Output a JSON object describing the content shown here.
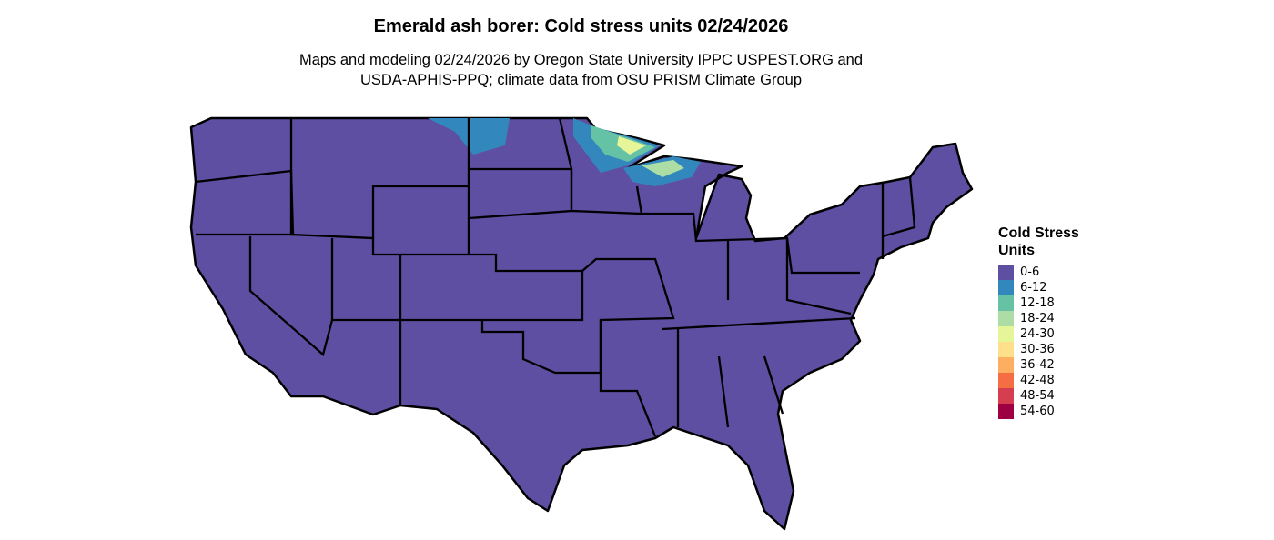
{
  "title": "Emerald ash borer: Cold stress units 02/24/2026",
  "subtitle_lines": [
    "Maps and modeling 02/24/2026 by Oregon State University IPPC USPEST.ORG and",
    "USDA-APHIS-PPQ; climate data from OSU PRISM Climate Group"
  ],
  "legend": {
    "title_lines": [
      "Cold Stress",
      "Units"
    ],
    "items": [
      {
        "label": "0-6",
        "color": "#5E4FA2"
      },
      {
        "label": "6-12",
        "color": "#3288BD"
      },
      {
        "label": "12-18",
        "color": "#66C2A5"
      },
      {
        "label": "18-24",
        "color": "#ABDDA4"
      },
      {
        "label": "24-30",
        "color": "#E6F598"
      },
      {
        "label": "30-36",
        "color": "#FEE08B"
      },
      {
        "label": "36-42",
        "color": "#FDAE61"
      },
      {
        "label": "42-48",
        "color": "#F46D43"
      },
      {
        "label": "48-54",
        "color": "#D53E4F"
      },
      {
        "label": "54-60",
        "color": "#9E0142"
      }
    ]
  }
}
